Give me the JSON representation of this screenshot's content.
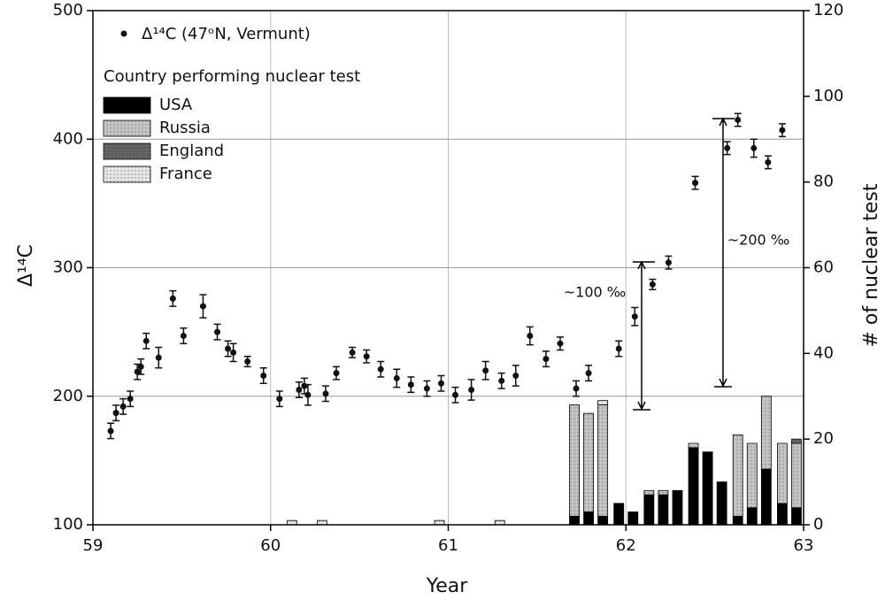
{
  "chart_data": {
    "type": "scatter",
    "x_label": "Year",
    "y_label": "Δ¹⁴C",
    "y2_label": "# of nuclear test",
    "legend_title": "Country performing nuclear test",
    "annotations": [
      "~100 ‰",
      "~200 ‰"
    ],
    "xlim": [
      59,
      63
    ],
    "xticks": [
      59,
      60,
      61,
      62,
      63
    ],
    "ylim": [
      100,
      500
    ],
    "yticks": [
      100,
      200,
      300,
      400,
      500
    ],
    "y2lim": [
      0,
      120
    ],
    "y2ticks": [
      0,
      20,
      40,
      60,
      80,
      100,
      120
    ],
    "grid": true,
    "series": [
      {
        "name": "Δ¹⁴C (47ᵒN, Vermunt)",
        "type": "scatter",
        "color": "#111111",
        "x": [
          59.1,
          59.13,
          59.17,
          59.21,
          59.25,
          59.27,
          59.3,
          59.37,
          59.45,
          59.51,
          59.62,
          59.7,
          59.76,
          59.79,
          59.87,
          59.96,
          60.05,
          60.16,
          60.19,
          60.21,
          60.31,
          60.37,
          60.46,
          60.54,
          60.62,
          60.71,
          60.79,
          60.88,
          60.96,
          61.04,
          61.13,
          61.21,
          61.3,
          61.38,
          61.46,
          61.55,
          61.63,
          61.72,
          61.79,
          61.96,
          62.05,
          62.15,
          62.24,
          62.39,
          62.57,
          62.63,
          62.72,
          62.8,
          62.88
        ],
        "values": [
          173,
          187,
          192,
          198,
          219,
          223,
          243,
          230,
          276,
          247,
          270,
          250,
          237,
          234,
          227,
          216,
          198,
          205,
          208,
          201,
          202,
          218,
          234,
          231,
          221,
          214,
          209,
          206,
          210,
          201,
          205,
          220,
          212,
          216,
          247,
          229,
          241,
          206,
          218,
          237,
          262,
          287,
          304,
          366,
          393,
          415,
          393,
          382,
          407
        ],
        "errors": [
          6,
          6,
          6,
          6,
          6,
          6,
          6,
          8,
          6,
          6,
          9,
          6,
          6,
          7,
          4,
          6,
          6,
          6,
          6,
          8,
          6,
          5,
          4,
          5,
          6,
          7,
          6,
          6,
          6,
          6,
          8,
          7,
          6,
          8,
          7,
          6,
          5,
          6,
          6,
          6,
          7,
          4,
          5,
          5,
          5,
          5,
          7,
          5,
          5
        ]
      },
      {
        "name": "USA",
        "type": "bar",
        "axis": "y2",
        "color": "#000000",
        "x": [
          60.12,
          60.29,
          60.95,
          61.29,
          61.71,
          61.79,
          61.87,
          61.96,
          62.04,
          62.13,
          62.21,
          62.29,
          62.38,
          62.46,
          62.54,
          62.63,
          62.71,
          62.79,
          62.88,
          62.96
        ],
        "values": [
          null,
          null,
          null,
          null,
          2,
          3,
          2,
          5,
          3,
          7,
          7,
          8,
          18,
          17,
          10,
          2,
          4,
          13,
          5,
          4
        ]
      },
      {
        "name": "Russia",
        "type": "bar",
        "axis": "y2",
        "color": "#c4c4c4",
        "x": [
          60.12,
          60.29,
          60.95,
          61.29,
          61.71,
          61.79,
          61.87,
          61.96,
          62.04,
          62.13,
          62.21,
          62.29,
          62.38,
          62.46,
          62.54,
          62.63,
          62.71,
          62.79,
          62.88,
          62.96
        ],
        "values": [
          null,
          null,
          null,
          null,
          26,
          23,
          26,
          null,
          null,
          1,
          1,
          null,
          1,
          null,
          null,
          19,
          15,
          17,
          14,
          15
        ]
      },
      {
        "name": "England",
        "type": "bar",
        "axis": "y2",
        "color": "#5e5e5e",
        "x": [
          60.12,
          60.29,
          60.95,
          61.29,
          61.71,
          61.79,
          61.87,
          61.96,
          62.04,
          62.13,
          62.21,
          62.29,
          62.38,
          62.46,
          62.54,
          62.63,
          62.71,
          62.79,
          62.88,
          62.96
        ],
        "values": [
          null,
          null,
          null,
          null,
          null,
          null,
          null,
          null,
          null,
          null,
          null,
          null,
          null,
          null,
          null,
          null,
          null,
          null,
          null,
          1
        ]
      },
      {
        "name": "France",
        "type": "bar",
        "axis": "y2",
        "color": "#e6e6e6",
        "x": [
          60.12,
          60.29,
          60.95,
          61.29,
          61.71,
          61.79,
          61.87,
          61.96,
          62.04,
          62.13,
          62.21,
          62.29,
          62.38,
          62.46,
          62.54,
          62.63,
          62.71,
          62.79,
          62.88,
          62.96
        ],
        "values": [
          1,
          1,
          1,
          1,
          null,
          null,
          1,
          null,
          null,
          null,
          null,
          null,
          null,
          null,
          null,
          null,
          null,
          null,
          null,
          null
        ]
      }
    ]
  }
}
